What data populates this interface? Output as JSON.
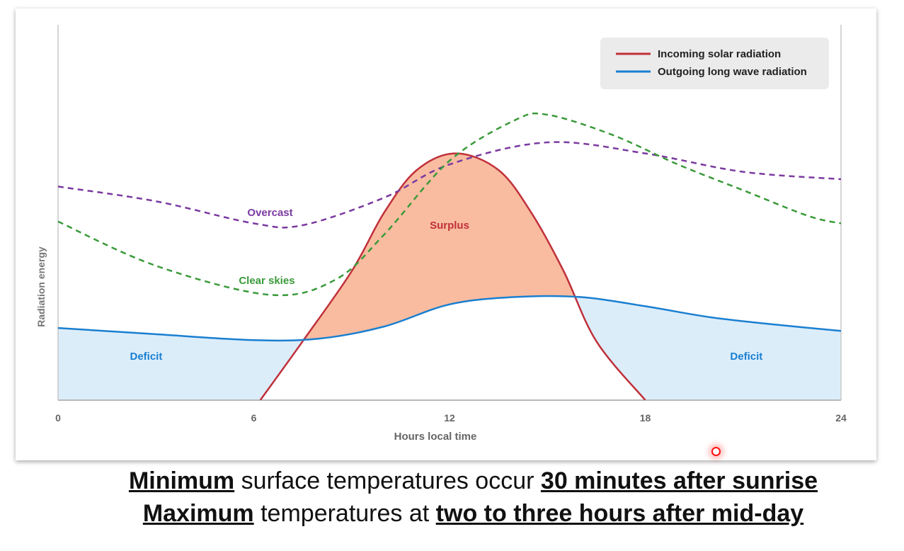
{
  "chart_data": {
    "type": "line",
    "xlabel": "Hours local time",
    "ylabel": "Radiation energy",
    "xlim": [
      0,
      24
    ],
    "ylim": [
      0,
      100
    ],
    "xticks": [
      "0",
      "6",
      "12",
      "18",
      "24"
    ],
    "legend": {
      "placement": "top-right",
      "entries": [
        {
          "label": "Incoming solar radiation",
          "color": "#c0303a"
        },
        {
          "label": "Outgoing long wave radiation",
          "color": "#1a7fd0"
        }
      ]
    },
    "series": [
      {
        "name": "Incoming solar radiation",
        "color": "#c0303a",
        "style": "solid",
        "points": [
          [
            6.2,
            0
          ],
          [
            7.5,
            16
          ],
          [
            9,
            35
          ],
          [
            10,
            51
          ],
          [
            11,
            62.5
          ],
          [
            12.2,
            67
          ],
          [
            13.5,
            62.5
          ],
          [
            14.5,
            51
          ],
          [
            15.5,
            35
          ],
          [
            16.5,
            16
          ],
          [
            18,
            0
          ]
        ]
      },
      {
        "name": "Outgoing long wave radiation",
        "color": "#1a7fd0",
        "style": "solid",
        "points": [
          [
            0,
            19.6
          ],
          [
            3,
            17.9
          ],
          [
            6,
            16.3
          ],
          [
            8,
            16.7
          ],
          [
            10,
            20
          ],
          [
            12,
            26
          ],
          [
            14,
            28
          ],
          [
            16,
            28
          ],
          [
            18,
            25.5
          ],
          [
            20,
            22.5
          ],
          [
            22,
            20.5
          ],
          [
            24,
            18.8
          ]
        ]
      },
      {
        "name": "Overcast",
        "color": "#7b3aa0",
        "style": "dashed",
        "points": [
          [
            0,
            58
          ],
          [
            3,
            54
          ],
          [
            6,
            48
          ],
          [
            7.5,
            47.5
          ],
          [
            10,
            55
          ],
          [
            12,
            64
          ],
          [
            15,
            70
          ],
          [
            18,
            67
          ],
          [
            21,
            62
          ],
          [
            24,
            60
          ]
        ]
      },
      {
        "name": "Clear skies",
        "color": "#3a9a3a",
        "style": "dashed",
        "points": [
          [
            0,
            48.5
          ],
          [
            3,
            36.5
          ],
          [
            6.5,
            28.6
          ],
          [
            8.5,
            32.7
          ],
          [
            10,
            45
          ],
          [
            12,
            65
          ],
          [
            14,
            76
          ],
          [
            15,
            77.5
          ],
          [
            17,
            72
          ],
          [
            19,
            64
          ],
          [
            21,
            57
          ],
          [
            23,
            50
          ],
          [
            24,
            48
          ]
        ]
      }
    ],
    "annotations": [
      {
        "text": "Overcast",
        "x": 6.5,
        "y": 50,
        "color": "#7b3aa0"
      },
      {
        "text": "Clear skies",
        "x": 6.4,
        "y": 31.5,
        "color": "#3a9a3a"
      },
      {
        "text": "Surplus",
        "x": 12,
        "y": 46.5,
        "color": "#c0303a"
      },
      {
        "text": "Deficit",
        "x": 2.7,
        "y": 11,
        "color": "#1a7fd0"
      },
      {
        "text": "Deficit",
        "x": 21.1,
        "y": 11,
        "color": "#1a7fd0"
      }
    ],
    "fills": {
      "surplus": "#f9bca0",
      "deficit": "#dcedfa"
    }
  },
  "caption": {
    "line1": [
      {
        "text": "Minimum",
        "bold": true
      },
      {
        "text": " surface temperatures occur ",
        "bold": false
      },
      {
        "text": "30 minutes after sunrise",
        "bold": true
      }
    ],
    "line2": [
      {
        "text": "Maximum",
        "bold": true
      },
      {
        "text": " temperatures at ",
        "bold": false
      },
      {
        "text": "two to three hours after mid-day",
        "bold": true
      }
    ]
  }
}
